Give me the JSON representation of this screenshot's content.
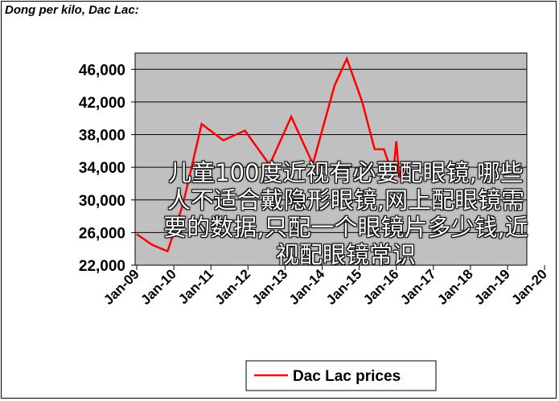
{
  "chart_data": {
    "type": "line",
    "title": "Dong per kilo, Dac Lac:",
    "xlabel": "",
    "ylabel": "",
    "x_ticks": [
      "Jan-09",
      "Jan-10",
      "Jan-11",
      "Jan-12",
      "Jan-13",
      "Jan-14",
      "Jan-15",
      "Jan-16",
      "Jan-17",
      "Jan-18",
      "Jan-19",
      "Jan-20"
    ],
    "y_ticks": [
      "22,000",
      "26,000",
      "30,000",
      "34,000",
      "38,000",
      "42,000",
      "46,000"
    ],
    "ylim": [
      22000,
      48000
    ],
    "grid": true,
    "legend_position": "bottom",
    "series": [
      {
        "name": "Dac Lac prices",
        "color": "#ff0000",
        "points": [
          [
            "2009-01",
            25800
          ],
          [
            "2009-06",
            24500
          ],
          [
            "2009-11",
            23700
          ],
          [
            "2010-04",
            29500
          ],
          [
            "2010-10",
            39300
          ],
          [
            "2011-05",
            37300
          ],
          [
            "2011-12",
            38500
          ],
          [
            "2012-08",
            34300
          ],
          [
            "2013-03",
            40200
          ],
          [
            "2013-10",
            34400
          ],
          [
            "2014-05",
            44000
          ],
          [
            "2014-09",
            47300
          ],
          [
            "2015-02",
            42000
          ],
          [
            "2015-06",
            36200
          ],
          [
            "2015-09",
            36200
          ],
          [
            "2015-11",
            34000
          ],
          [
            "2015-12",
            33200
          ],
          [
            "2016-01",
            37200
          ],
          [
            "2016-02",
            32700
          ],
          [
            "2016-03",
            34300
          ],
          [
            "2016-04",
            33100
          ]
        ]
      }
    ]
  },
  "overlay": {
    "text": "儿童100度近视有必要配眼镜,哪些人不适合戴隐形眼镜,网上配眼镜需要的数据,只配一个眼镜片多少钱,近视配眼镜常识",
    "color": "#ffffff"
  },
  "colors": {
    "plot_background": "#c0c0c0",
    "line": "#ff0000"
  }
}
